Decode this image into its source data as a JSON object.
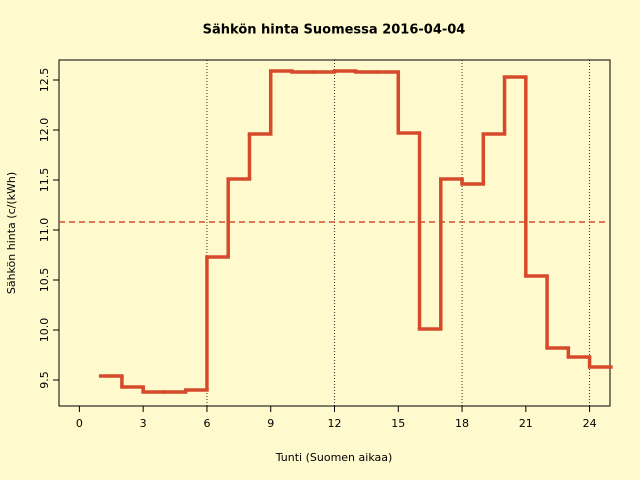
{
  "chart_data": {
    "type": "step",
    "title": "Sähkön hinta Suomessa 2016-04-04",
    "x_label": "Tunti (Suomen aikaa)",
    "y_label": "Sähkön hinta (c/(kWh)",
    "x": [
      1,
      2,
      3,
      4,
      5,
      6,
      7,
      8,
      9,
      10,
      11,
      12,
      13,
      14,
      15,
      16,
      17,
      18,
      19,
      20,
      21,
      22,
      23,
      24
    ],
    "series": [
      {
        "color": "#d64a2c",
        "values": [
          9.54,
          9.43,
          9.38,
          9.38,
          9.4,
          10.73,
          11.51,
          11.96,
          12.59,
          12.58,
          12.58,
          12.59,
          12.58,
          12.58,
          11.97,
          10.01,
          11.51,
          11.46,
          11.96,
          12.53,
          10.54,
          9.82,
          9.73,
          9.63
        ]
      }
    ],
    "mean_line": 11.08,
    "mean_color": "#d64a2c",
    "vlines": [
      6,
      12,
      18,
      24
    ],
    "xlim": [
      -0.96,
      24.96
    ],
    "ylim": [
      9.24,
      12.7
    ],
    "xticks": [
      0,
      3,
      6,
      9,
      12,
      15,
      18,
      21,
      24
    ],
    "yticks": [
      9.5,
      {
        "value": 10,
        "label": "10.0"
      },
      10.5,
      {
        "value": 11,
        "label": "11.0"
      },
      11.5,
      {
        "value": 12,
        "label": "12.0"
      },
      12.5
    ]
  }
}
